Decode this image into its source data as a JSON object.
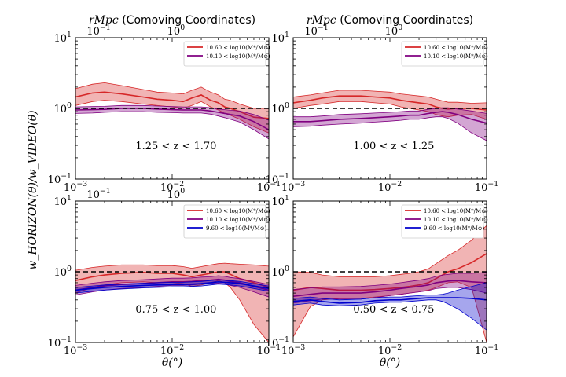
{
  "figure": {
    "ylabel": "w_HORIZON(θ)/w_VIDEO(θ)",
    "xlabel": "θ(°)",
    "top_axis_label_math": "rMpc",
    "top_axis_label_text": " (Comoving Coordinates)"
  },
  "chart_data": [
    {
      "type": "line",
      "panel": "top-left",
      "annotation": "1.25 < z < 1.70",
      "xscale": "log",
      "yscale": "log",
      "xlim": [
        0.001,
        0.1
      ],
      "ylim": [
        0.1,
        10
      ],
      "x_ticks": [
        "10^-3",
        "10^-2",
        "10^-1"
      ],
      "y_ticks": [
        "10^-1",
        "10^0",
        "10^1"
      ],
      "top_ticks": [
        "10^-1",
        "10^0"
      ],
      "reference_line": 1.0,
      "legend": "top-right",
      "x": [
        0.001,
        0.0015,
        0.002,
        0.003,
        0.005,
        0.007,
        0.01,
        0.013,
        0.016,
        0.02,
        0.025,
        0.03,
        0.035,
        0.04,
        0.05,
        0.07,
        0.1
      ],
      "series": [
        {
          "name": "10.60 < log10(M*/M⊙)",
          "color": "#d62728",
          "values": [
            1.45,
            1.65,
            1.7,
            1.6,
            1.45,
            1.35,
            1.3,
            1.25,
            1.4,
            1.55,
            1.3,
            1.2,
            1.05,
            1.0,
            0.9,
            0.75,
            0.72
          ],
          "lower": [
            1.1,
            1.25,
            1.3,
            1.25,
            1.15,
            1.1,
            1.05,
            1.0,
            1.1,
            1.25,
            1.05,
            0.95,
            0.85,
            0.8,
            0.7,
            0.55,
            0.45
          ],
          "upper": [
            1.9,
            2.2,
            2.3,
            2.1,
            1.85,
            1.7,
            1.65,
            1.6,
            1.8,
            2.0,
            1.7,
            1.55,
            1.35,
            1.3,
            1.15,
            1.0,
            1.0
          ]
        },
        {
          "name": "10.10 < log10(M*/M⊙)",
          "color": "#800080",
          "values": [
            0.95,
            0.96,
            0.97,
            1.0,
            1.0,
            0.98,
            0.96,
            0.95,
            0.95,
            0.95,
            0.92,
            0.88,
            0.85,
            0.82,
            0.78,
            0.65,
            0.5
          ],
          "lower": [
            0.85,
            0.86,
            0.88,
            0.9,
            0.9,
            0.88,
            0.87,
            0.86,
            0.86,
            0.86,
            0.83,
            0.78,
            0.74,
            0.7,
            0.64,
            0.5,
            0.37
          ],
          "upper": [
            1.05,
            1.06,
            1.07,
            1.1,
            1.1,
            1.08,
            1.06,
            1.05,
            1.05,
            1.05,
            1.02,
            0.98,
            0.96,
            0.94,
            0.92,
            0.82,
            0.68
          ]
        }
      ]
    },
    {
      "type": "line",
      "panel": "top-right",
      "annotation": "1.00 < z < 1.25",
      "xscale": "log",
      "yscale": "log",
      "xlim": [
        0.001,
        0.1
      ],
      "ylim": [
        0.1,
        10
      ],
      "x_ticks": [
        "10^-3",
        "10^-2",
        "10^-1"
      ],
      "y_ticks": [
        "10^-1",
        "10^0",
        "10^1"
      ],
      "top_ticks": [
        "10^-1",
        "10^0"
      ],
      "reference_line": 1.0,
      "legend": "top-right",
      "x": [
        0.001,
        0.0015,
        0.002,
        0.003,
        0.005,
        0.007,
        0.01,
        0.013,
        0.016,
        0.02,
        0.025,
        0.03,
        0.035,
        0.04,
        0.05,
        0.07,
        0.1
      ],
      "series": [
        {
          "name": "10.60 < log10(M*/M⊙)",
          "color": "#d62728",
          "values": [
            1.2,
            1.3,
            1.4,
            1.5,
            1.5,
            1.45,
            1.4,
            1.3,
            1.25,
            1.2,
            1.15,
            1.05,
            1.0,
            0.98,
            1.0,
            1.0,
            0.95
          ],
          "lower": [
            1.0,
            1.1,
            1.15,
            1.25,
            1.25,
            1.2,
            1.15,
            1.05,
            1.0,
            0.95,
            0.9,
            0.82,
            0.78,
            0.76,
            0.8,
            0.82,
            0.7
          ],
          "upper": [
            1.45,
            1.55,
            1.65,
            1.8,
            1.8,
            1.75,
            1.7,
            1.6,
            1.55,
            1.5,
            1.45,
            1.35,
            1.28,
            1.22,
            1.22,
            1.18,
            1.2
          ]
        },
        {
          "name": "10.10 < log10(M*/M⊙)",
          "color": "#800080",
          "values": [
            0.65,
            0.65,
            0.67,
            0.7,
            0.72,
            0.74,
            0.76,
            0.78,
            0.8,
            0.8,
            0.85,
            0.88,
            0.9,
            0.88,
            0.82,
            0.7,
            0.62
          ],
          "lower": [
            0.55,
            0.56,
            0.58,
            0.6,
            0.62,
            0.64,
            0.66,
            0.68,
            0.7,
            0.7,
            0.74,
            0.76,
            0.76,
            0.72,
            0.62,
            0.45,
            0.35
          ],
          "upper": [
            0.76,
            0.76,
            0.78,
            0.82,
            0.84,
            0.86,
            0.88,
            0.9,
            0.92,
            0.92,
            0.97,
            1.0,
            1.02,
            1.02,
            0.98,
            0.92,
            0.85
          ]
        }
      ]
    },
    {
      "type": "line",
      "panel": "bottom-left",
      "annotation": "0.75 < z < 1.00",
      "xscale": "log",
      "yscale": "log",
      "xlim": [
        0.001,
        0.1
      ],
      "ylim": [
        0.1,
        10
      ],
      "x_ticks": [
        "10^-3",
        "10^-2",
        "10^-1"
      ],
      "y_ticks": [
        "10^-1",
        "10^0",
        "10^1"
      ],
      "top_ticks": [
        "10^-1",
        "10^0"
      ],
      "reference_line": 1.0,
      "legend": "top-right",
      "x": [
        0.001,
        0.0015,
        0.002,
        0.003,
        0.005,
        0.007,
        0.01,
        0.013,
        0.016,
        0.02,
        0.025,
        0.03,
        0.035,
        0.04,
        0.05,
        0.07,
        0.1
      ],
      "series": [
        {
          "name": "10.60 < log10(M*/M⊙)",
          "color": "#d62728",
          "values": [
            0.75,
            0.85,
            0.9,
            0.95,
            0.98,
            0.95,
            0.95,
            0.9,
            0.85,
            0.9,
            0.95,
            1.0,
            1.0,
            0.92,
            0.8,
            0.7,
            0.6
          ],
          "lower": [
            0.5,
            0.6,
            0.65,
            0.7,
            0.72,
            0.7,
            0.7,
            0.68,
            0.62,
            0.65,
            0.7,
            0.75,
            0.7,
            0.6,
            0.4,
            0.18,
            0.1
          ],
          "upper": [
            1.05,
            1.15,
            1.2,
            1.25,
            1.25,
            1.22,
            1.22,
            1.18,
            1.12,
            1.18,
            1.25,
            1.3,
            1.32,
            1.3,
            1.28,
            1.25,
            1.2
          ]
        },
        {
          "name": "10.10 < log10(M*/M⊙)",
          "color": "#800080",
          "values": [
            0.55,
            0.6,
            0.63,
            0.66,
            0.68,
            0.7,
            0.72,
            0.72,
            0.73,
            0.75,
            0.76,
            0.78,
            0.76,
            0.73,
            0.7,
            0.62,
            0.55
          ],
          "lower": [
            0.47,
            0.52,
            0.55,
            0.58,
            0.6,
            0.62,
            0.64,
            0.64,
            0.65,
            0.67,
            0.68,
            0.69,
            0.67,
            0.64,
            0.6,
            0.52,
            0.44
          ],
          "upper": [
            0.64,
            0.69,
            0.72,
            0.75,
            0.77,
            0.79,
            0.81,
            0.81,
            0.82,
            0.84,
            0.85,
            0.88,
            0.86,
            0.83,
            0.8,
            0.73,
            0.66
          ]
        },
        {
          "name": "9.60 < log10(M*/M⊙)",
          "color": "#0000cc",
          "values": [
            0.55,
            0.58,
            0.6,
            0.62,
            0.64,
            0.65,
            0.66,
            0.66,
            0.67,
            0.68,
            0.7,
            0.72,
            0.71,
            0.7,
            0.68,
            0.63,
            0.58
          ],
          "lower": [
            0.5,
            0.53,
            0.55,
            0.57,
            0.59,
            0.6,
            0.61,
            0.61,
            0.62,
            0.63,
            0.65,
            0.67,
            0.66,
            0.65,
            0.63,
            0.58,
            0.53
          ],
          "upper": [
            0.6,
            0.63,
            0.65,
            0.67,
            0.69,
            0.7,
            0.71,
            0.71,
            0.72,
            0.73,
            0.75,
            0.77,
            0.76,
            0.75,
            0.73,
            0.68,
            0.63
          ]
        }
      ]
    },
    {
      "type": "line",
      "panel": "bottom-right",
      "annotation": "0.50 < z < 0.75",
      "xscale": "log",
      "yscale": "log",
      "xlim": [
        0.001,
        0.1
      ],
      "ylim": [
        0.1,
        10
      ],
      "x_ticks": [
        "10^-3",
        "10^-2",
        "10^-1"
      ],
      "y_ticks": [
        "10^-1",
        "10^0",
        "10^1"
      ],
      "top_ticks": [],
      "reference_line": 1.0,
      "legend": "top-right",
      "x": [
        0.001,
        0.0015,
        0.002,
        0.003,
        0.005,
        0.007,
        0.01,
        0.013,
        0.016,
        0.02,
        0.025,
        0.03,
        0.035,
        0.04,
        0.05,
        0.07,
        0.1
      ],
      "series": [
        {
          "name": "10.60 < log10(M*/M⊙)",
          "color": "#d62728",
          "values": [
            0.55,
            0.6,
            0.58,
            0.55,
            0.55,
            0.56,
            0.58,
            0.6,
            0.62,
            0.65,
            0.7,
            0.8,
            0.9,
            1.0,
            1.1,
            1.35,
            1.8
          ],
          "lower": [
            0.12,
            0.32,
            0.4,
            0.42,
            0.42,
            0.44,
            0.46,
            0.48,
            0.5,
            0.52,
            0.55,
            0.6,
            0.65,
            0.7,
            0.72,
            0.6,
            0.1
          ],
          "upper": [
            1.0,
            0.98,
            0.9,
            0.85,
            0.85,
            0.85,
            0.88,
            0.92,
            0.95,
            1.0,
            1.1,
            1.3,
            1.5,
            1.7,
            2.0,
            2.8,
            4.5
          ]
        },
        {
          "name": "10.10 < log10(M*/M⊙)",
          "color": "#800080",
          "values": [
            0.45,
            0.48,
            0.5,
            0.5,
            0.5,
            0.52,
            0.55,
            0.58,
            0.6,
            0.62,
            0.65,
            0.7,
            0.72,
            0.74,
            0.75,
            0.72,
            0.7
          ],
          "lower": [
            0.36,
            0.39,
            0.41,
            0.41,
            0.41,
            0.43,
            0.46,
            0.48,
            0.5,
            0.52,
            0.54,
            0.58,
            0.59,
            0.6,
            0.6,
            0.56,
            0.5
          ],
          "upper": [
            0.56,
            0.59,
            0.61,
            0.61,
            0.62,
            0.64,
            0.67,
            0.7,
            0.73,
            0.76,
            0.8,
            0.86,
            0.9,
            0.92,
            0.95,
            0.95,
            0.98
          ]
        },
        {
          "name": "9.60 < log10(M*/M⊙)",
          "color": "#0000cc",
          "values": [
            0.38,
            0.4,
            0.38,
            0.36,
            0.37,
            0.39,
            0.4,
            0.4,
            0.41,
            0.42,
            0.43,
            0.43,
            0.43,
            0.43,
            0.43,
            0.42,
            0.4
          ],
          "lower": [
            0.34,
            0.36,
            0.34,
            0.33,
            0.34,
            0.36,
            0.37,
            0.37,
            0.38,
            0.39,
            0.4,
            0.4,
            0.38,
            0.35,
            0.3,
            0.22,
            0.15
          ],
          "upper": [
            0.42,
            0.44,
            0.42,
            0.4,
            0.41,
            0.43,
            0.44,
            0.44,
            0.45,
            0.46,
            0.47,
            0.47,
            0.48,
            0.5,
            0.55,
            0.62,
            0.7
          ]
        }
      ]
    }
  ]
}
